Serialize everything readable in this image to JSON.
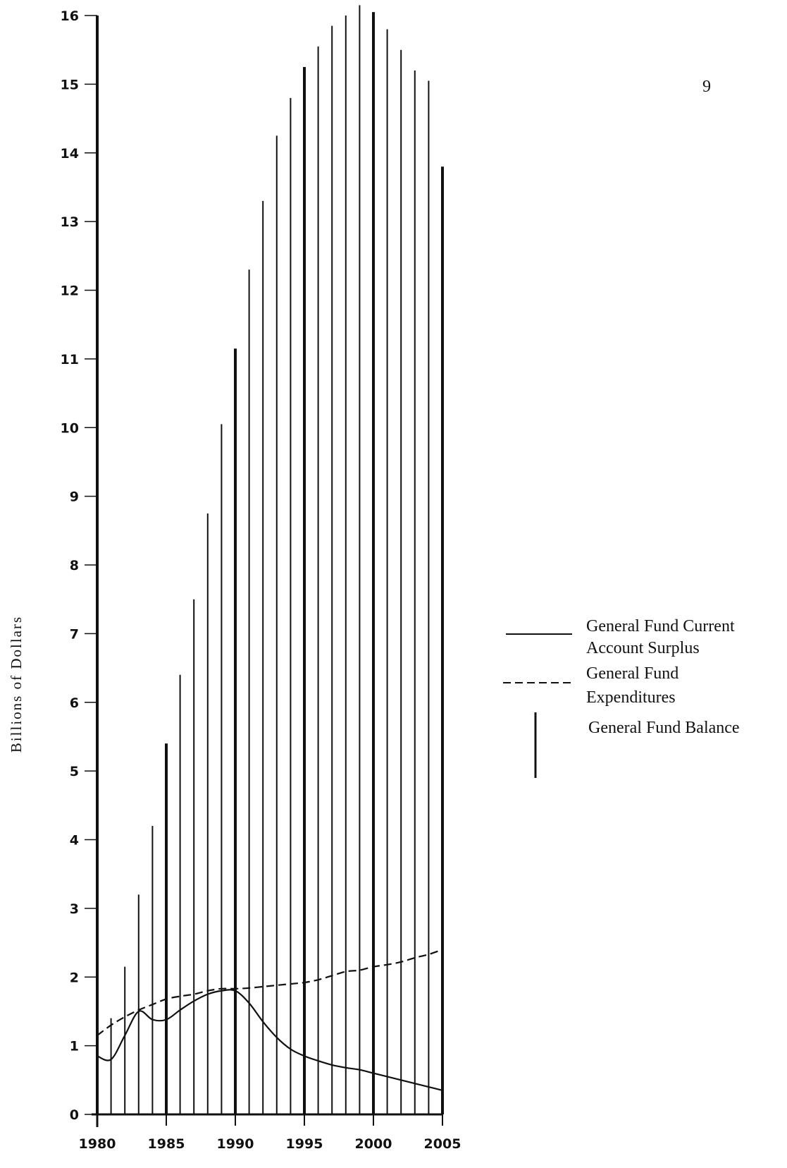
{
  "page_number": "9",
  "chart_data": {
    "type": "bar",
    "title": "",
    "xlabel": "",
    "ylabel": "Billions of Dollars",
    "xlim": [
      1980,
      2005
    ],
    "ylim": [
      0,
      16
    ],
    "x_ticks": [
      "1980",
      "1985",
      "1990",
      "1995",
      "2000",
      "2005"
    ],
    "y_ticks": [
      "0",
      "1",
      "2",
      "3",
      "4",
      "5",
      "6",
      "7",
      "8",
      "9",
      "10",
      "11",
      "12",
      "13",
      "14",
      "15",
      "16"
    ],
    "grid": false,
    "legend_position": "right",
    "series": [
      {
        "name": "General Fund Balance",
        "type": "bar",
        "color": "#111111",
        "x": [
          1980,
          1981,
          1982,
          1983,
          1984,
          1985,
          1986,
          1987,
          1988,
          1989,
          1990,
          1991,
          1992,
          1993,
          1994,
          1995,
          1996,
          1997,
          1998,
          1999,
          2000,
          2001,
          2002,
          2003,
          2004,
          2005
        ],
        "values": [
          16.0,
          1.4,
          2.15,
          3.2,
          4.2,
          5.4,
          6.4,
          7.5,
          8.75,
          10.05,
          11.15,
          12.3,
          13.3,
          14.25,
          14.8,
          15.25,
          15.55,
          15.85,
          16.0,
          16.15,
          16.05,
          15.8,
          15.5,
          15.2,
          15.05,
          13.8
        ]
      },
      {
        "name": "General Fund Current Account Surplus",
        "type": "line",
        "style": "solid",
        "color": "#111111",
        "x": [
          1980,
          1981,
          1982,
          1983,
          1984,
          1985,
          1986,
          1987,
          1988,
          1989,
          1990,
          1991,
          1992,
          1993,
          1994,
          1995,
          1996,
          1997,
          1998,
          1999,
          2000,
          2001,
          2002,
          2003,
          2004,
          2005
        ],
        "values": [
          0.85,
          0.8,
          1.15,
          1.5,
          1.38,
          1.38,
          1.52,
          1.65,
          1.75,
          1.8,
          1.8,
          1.62,
          1.35,
          1.12,
          0.95,
          0.85,
          0.78,
          0.72,
          0.68,
          0.65,
          0.6,
          0.55,
          0.5,
          0.45,
          0.4,
          0.35
        ]
      },
      {
        "name": "General Fund Expenditures",
        "type": "line",
        "style": "dashed",
        "color": "#111111",
        "x": [
          1980,
          1981,
          1982,
          1983,
          1984,
          1985,
          1986,
          1987,
          1988,
          1989,
          1990,
          1991,
          1992,
          1993,
          1994,
          1995,
          1996,
          1997,
          1998,
          1999,
          2000,
          2001,
          2002,
          2003,
          2004,
          2005
        ],
        "values": [
          1.15,
          1.3,
          1.42,
          1.52,
          1.6,
          1.68,
          1.72,
          1.75,
          1.8,
          1.83,
          1.83,
          1.84,
          1.86,
          1.88,
          1.9,
          1.92,
          1.96,
          2.02,
          2.08,
          2.1,
          2.15,
          2.18,
          2.22,
          2.28,
          2.33,
          2.4
        ]
      }
    ],
    "legend": [
      {
        "series": "General Fund Current Account Surplus",
        "lines": [
          "General Fund Current",
          "Account Surplus"
        ]
      },
      {
        "series": "General Fund Expenditures",
        "lines": [
          "General Fund",
          "Expenditures"
        ]
      },
      {
        "series": "General Fund Balance",
        "lines": [
          "General Fund Balance"
        ]
      }
    ]
  }
}
